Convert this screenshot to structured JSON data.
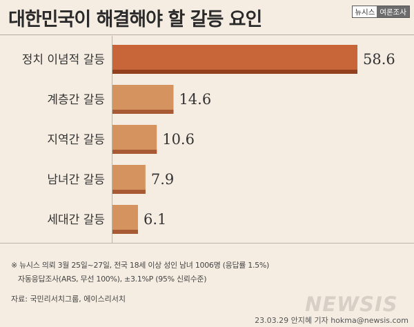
{
  "title": "대한민국이 해결해야 할 갈등 요인",
  "badge": {
    "left": "뉴시스",
    "right": "여론조사"
  },
  "notes": {
    "line1": "※ 뉴시스 의뢰 3월 25일~27일, 전국 18세 이상 성인 남녀 1006명 (응답률 1.5%)",
    "line2": "자동응답조사(ARS, 무선 100%), ±3.1%P (95% 신뢰수준)"
  },
  "source": "자료: 국민리서치그룹, 에이스리서치",
  "logo": "NEWSIS",
  "credit": "23.03.29 안지혜 기자 hokma@newsis.com",
  "colors": {
    "top_bar": "#c8663a",
    "top_bar_shadow": "#93401f",
    "bar": "#d5935f",
    "bar_shadow": "#a85a34",
    "background": "#f5ede2"
  },
  "chart_data": {
    "type": "bar",
    "orientation": "horizontal",
    "categories": [
      "정치 이념적 갈등",
      "계층간 갈등",
      "지역간 갈등",
      "남녀간 갈등",
      "세대간 갈등"
    ],
    "values": [
      58.6,
      14.6,
      10.6,
      7.9,
      6.1
    ],
    "value_labels": [
      "58.6",
      "14.6",
      "10.6",
      "7.9",
      "6.1"
    ],
    "title": "대한민국이 해결해야 할 갈등 요인",
    "xlim": [
      0,
      58.6
    ],
    "grid": false,
    "legend": "none"
  }
}
